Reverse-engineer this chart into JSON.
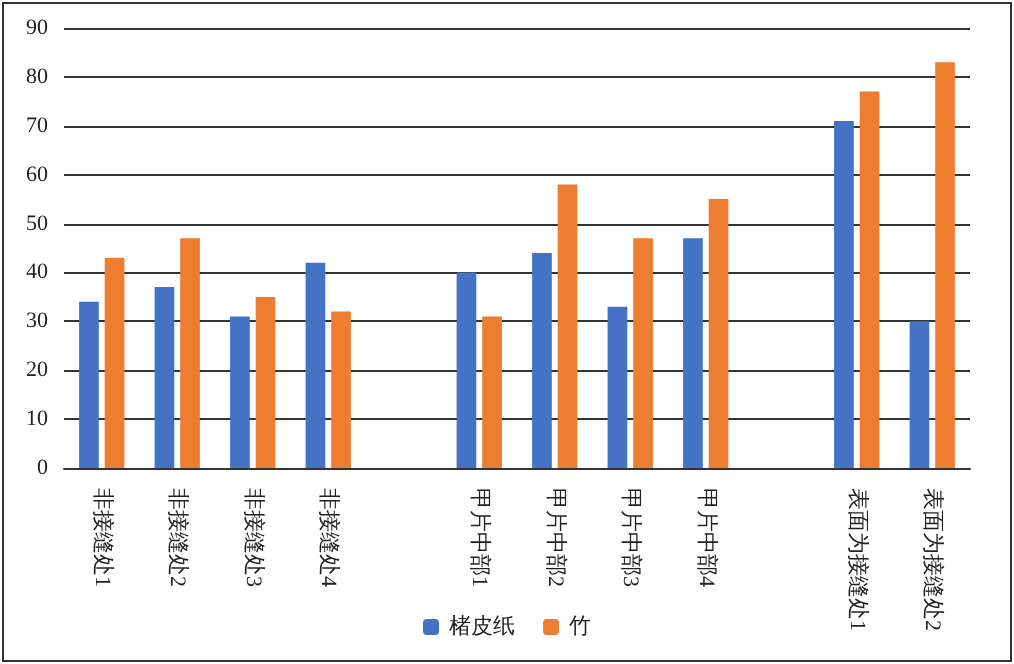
{
  "chart_data": {
    "type": "bar",
    "categories": [
      "非接缝处1",
      "非接缝处2",
      "非接缝处3",
      "非接缝处4",
      null,
      "甲片中部1",
      "甲片中部2",
      "甲片中部3",
      "甲片中部4",
      null,
      "表面为接缝处1",
      "表面为接缝处2"
    ],
    "series": [
      {
        "name": "楮皮纸",
        "color": "#4472c4",
        "values": [
          34,
          37,
          31,
          42,
          null,
          40,
          44,
          33,
          47,
          null,
          71,
          30
        ]
      },
      {
        "name": "竹",
        "color": "#ed7d31",
        "values": [
          43,
          47,
          35,
          32,
          null,
          31,
          58,
          47,
          55,
          null,
          77,
          83
        ]
      }
    ],
    "ylim": [
      0,
      90
    ],
    "yticks": [
      0,
      10,
      20,
      30,
      40,
      50,
      60,
      70,
      80,
      90
    ],
    "grid": "y",
    "legend": "bottom"
  }
}
